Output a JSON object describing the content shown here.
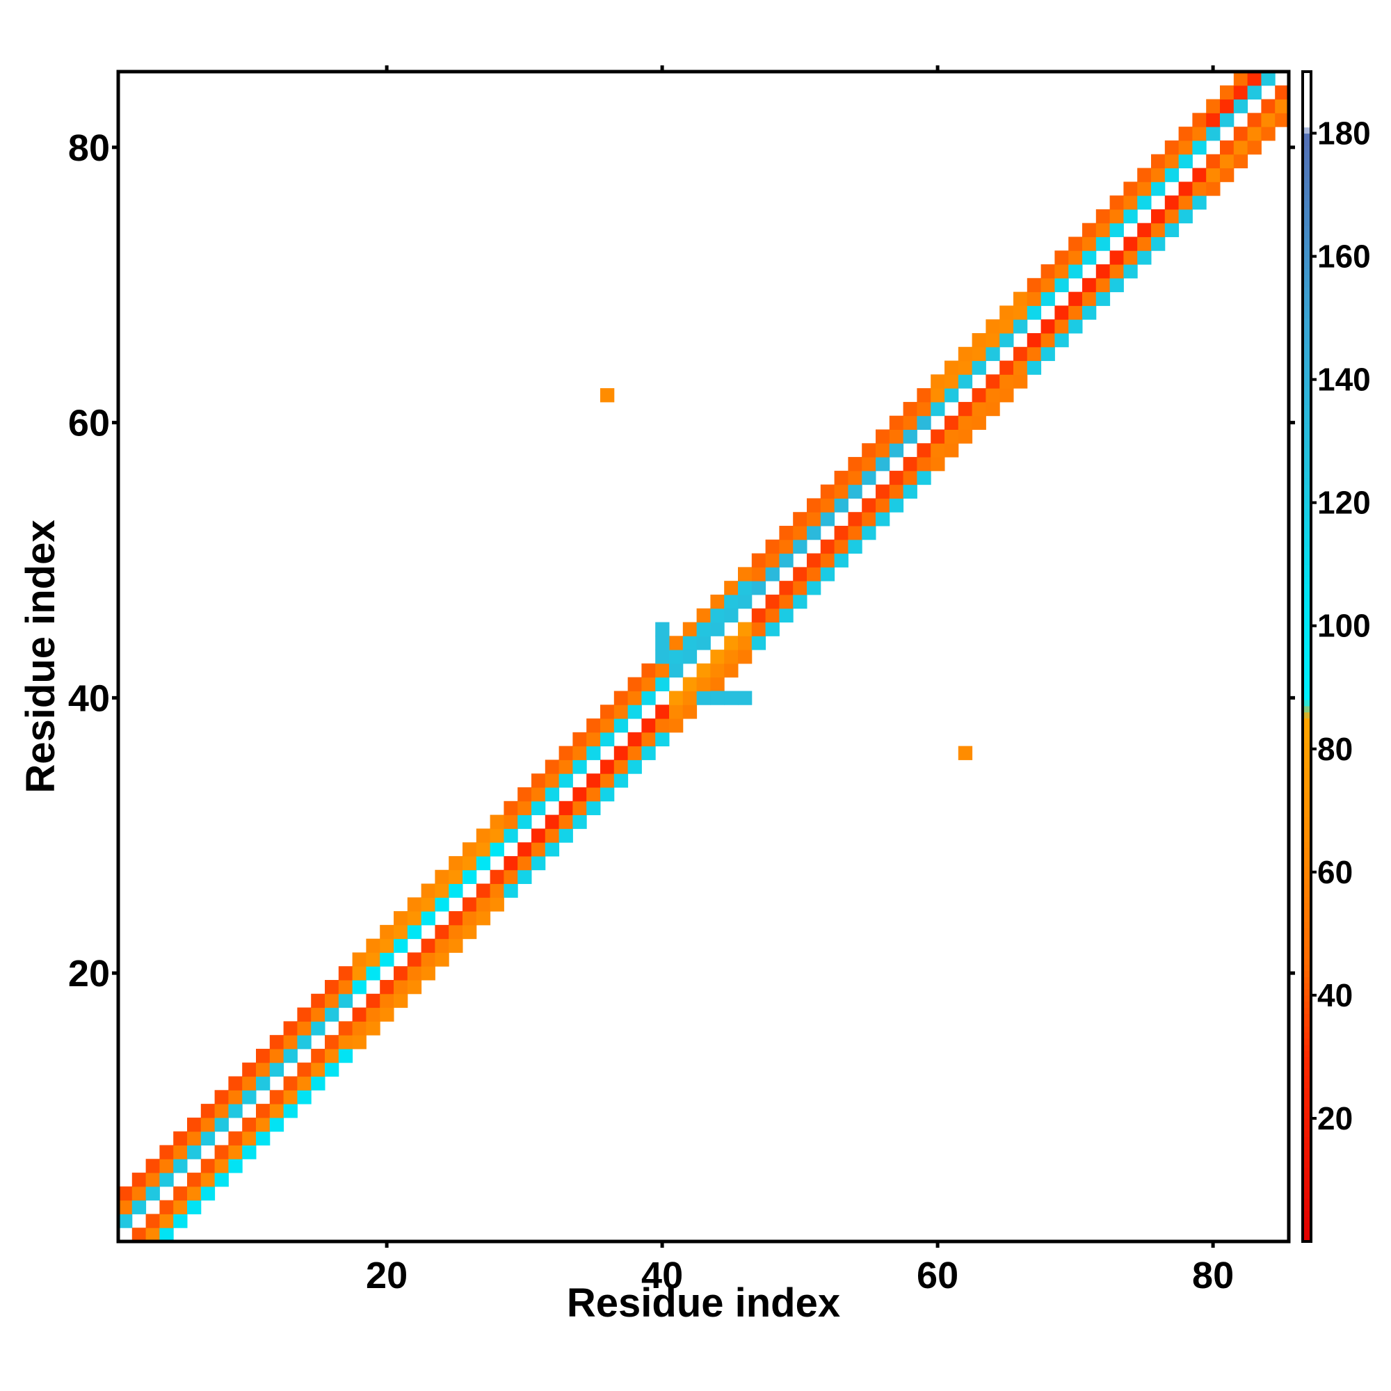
{
  "chart_data": {
    "type": "heatmap",
    "title": "",
    "xlabel": "Residue index",
    "ylabel": "Residue index",
    "xlim": [
      0.5,
      85.5
    ],
    "ylim": [
      0.5,
      85.5
    ],
    "x_ticks": [
      20,
      40,
      60,
      80
    ],
    "y_ticks": [
      20,
      40,
      60,
      80
    ],
    "colorbar": {
      "range": [
        0,
        190
      ],
      "ticks": [
        20,
        40,
        60,
        80,
        100,
        120,
        140,
        160,
        180
      ],
      "stops": [
        {
          "value": 0,
          "color": "#e00000"
        },
        {
          "value": 30,
          "color": "#ff2a00"
        },
        {
          "value": 45,
          "color": "#ff6a00"
        },
        {
          "value": 65,
          "color": "#ff8c00"
        },
        {
          "value": 85,
          "color": "#ffa500"
        },
        {
          "value": 88,
          "color": "#00f0ff"
        },
        {
          "value": 105,
          "color": "#00e5f5"
        },
        {
          "value": 125,
          "color": "#22c5e0"
        },
        {
          "value": 150,
          "color": "#3aa5d5"
        },
        {
          "value": 170,
          "color": "#4a80c0"
        },
        {
          "value": 180,
          "color": "#5570b5"
        },
        {
          "value": 181,
          "color": "#ffffff"
        },
        {
          "value": 190,
          "color": "#ffffff"
        }
      ]
    },
    "diagonal_band": {
      "description_values": "pairwise values between residues i and j near the diagonal |i-j| <= 6",
      "segments": [
        {
          "start": 1,
          "end": 17,
          "pattern": [
            110,
            55,
            40,
            0,
            120,
            60,
            30
          ]
        },
        {
          "start": 18,
          "end": 28,
          "pattern": [
            70,
            50,
            35,
            0,
            100,
            75,
            55
          ]
        },
        {
          "start": 29,
          "end": 40,
          "pattern": [
            120,
            45,
            30,
            0,
            110,
            60,
            35
          ]
        },
        {
          "start": 41,
          "end": 46,
          "pattern": [
            60,
            55,
            75,
            0,
            125,
            130,
            50
          ]
        },
        {
          "start": 47,
          "end": 59,
          "pattern": [
            125,
            40,
            35,
            0,
            130,
            55,
            35
          ]
        },
        {
          "start": 60,
          "end": 66,
          "pattern": [
            60,
            50,
            35,
            0,
            120,
            70,
            55
          ]
        },
        {
          "start": 67,
          "end": 79,
          "pattern": [
            125,
            45,
            30,
            0,
            110,
            60,
            35
          ]
        },
        {
          "start": 80,
          "end": 85,
          "pattern": [
            50,
            55,
            40,
            0,
            120,
            35,
            40
          ]
        }
      ]
    },
    "extra_cells": [
      {
        "x": 36,
        "y": 62,
        "value": 65
      },
      {
        "x": 62,
        "y": 36,
        "value": 65
      },
      {
        "x": 40,
        "y": 43,
        "value": 130
      },
      {
        "x": 40,
        "y": 44,
        "value": 130
      },
      {
        "x": 40,
        "y": 45,
        "value": 130
      },
      {
        "x": 43,
        "y": 40,
        "value": 130
      },
      {
        "x": 44,
        "y": 40,
        "value": 130
      },
      {
        "x": 45,
        "y": 40,
        "value": 130
      },
      {
        "x": 46,
        "y": 40,
        "value": 130
      }
    ]
  }
}
